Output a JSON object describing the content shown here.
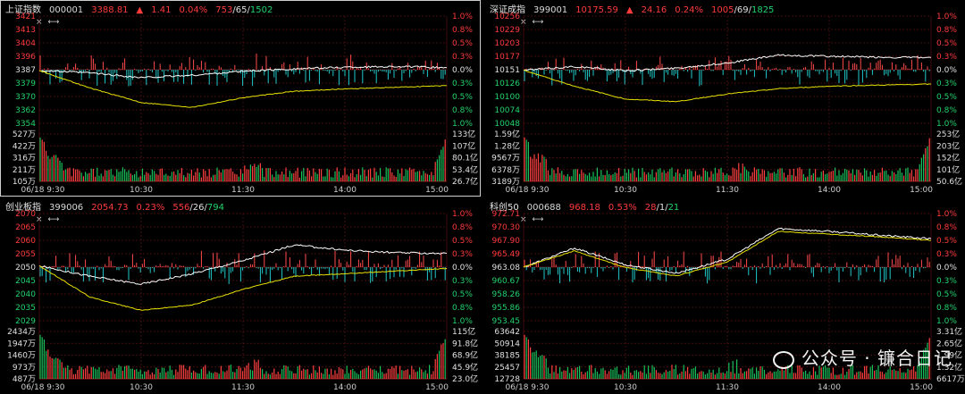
{
  "panels": [
    {
      "name": "上证指数",
      "code": "000001",
      "price": "3388.81",
      "arrow": "▲",
      "change": "1.41",
      "pct": "0.04%",
      "breadth_up": "753",
      "breadth_flat": "65",
      "breadth_down": "1502",
      "price_ticks": [
        "3421",
        "3413",
        "3404",
        "3396",
        "3387",
        "3379",
        "3370",
        "3362",
        "3354"
      ],
      "pct_ticks": [
        "1.0%",
        "0.8%",
        "0.5%",
        "0.3%",
        "0.0%",
        "0.3%",
        "0.5%",
        "0.8%",
        "1.0%"
      ],
      "vol_ticks": [
        "527万",
        "422万",
        "316万",
        "211万",
        "105万"
      ],
      "amt_ticks": [
        "133亿",
        "107亿",
        "80.1亿",
        "53.4亿",
        "26.7亿"
      ],
      "time_ticks": [
        "06/18  9:30",
        "10:30",
        "11:30",
        "14:00",
        "15:00"
      ],
      "chart_data": {
        "type": "line",
        "x": [
          "9:30",
          "10:00",
          "10:30",
          "11:00",
          "11:30",
          "13:30",
          "14:00",
          "14:30",
          "15:00"
        ],
        "series": [
          {
            "values": [
              3387.0,
              3385.5,
              3382.5,
              3384.0,
              3386.5,
              3388.0,
              3389.0,
              3389.5,
              3388.8
            ]
          },
          {
            "values": [
              3387.0,
              3376.0,
              3367.0,
              3364.0,
              3370.0,
              3374.0,
              3375.5,
              3376.5,
              3377.5
            ]
          }
        ]
      }
    },
    {
      "name": "深证成指",
      "code": "399001",
      "price": "10175.59",
      "arrow": "▲",
      "change": "24.16",
      "pct": "0.24%",
      "breadth_up": "1005",
      "breadth_flat": "69",
      "breadth_down": "1825",
      "price_ticks": [
        "10256",
        "10229",
        "10203",
        "10177",
        "10151",
        "10126",
        "10100",
        "10074",
        "10048"
      ],
      "pct_ticks": [
        "1.0%",
        "0.8%",
        "0.5%",
        "0.3%",
        "0.0%",
        "0.3%",
        "0.5%",
        "0.8%",
        "1.0%"
      ],
      "vol_ticks": [
        "1.59亿",
        "1.28亿",
        "9567万",
        "6378万",
        "3189万"
      ],
      "amt_ticks": [
        "253亿",
        "203亿",
        "152亿",
        "101亿",
        "50.6亿"
      ],
      "time_ticks": [
        "06/18  9:30",
        "10:30",
        "11:30",
        "14:00",
        "15:00"
      ],
      "chart_data": {
        "type": "line",
        "x": [
          "9:30",
          "10:00",
          "10:30",
          "11:00",
          "11:30",
          "13:30",
          "14:00",
          "14:30",
          "15:00"
        ],
        "series": [
          {
            "values": [
              10151,
              10158,
              10150,
              10155,
              10165,
              10180,
              10178,
              10176,
              10175.59
            ]
          },
          {
            "values": [
              10151,
              10120,
              10095,
              10090,
              10105,
              10115,
              10120,
              10122,
              10124
            ]
          }
        ]
      }
    },
    {
      "name": "创业板指",
      "code": "399006",
      "price": "2054.73",
      "arrow": "",
      "change": "",
      "pct": "0.23%",
      "breadth_up": "556",
      "breadth_flat": "26",
      "breadth_down": "794",
      "price_ticks": [
        "2070",
        "2065",
        "2060",
        "2055",
        "2050",
        "2045",
        "2040",
        "2035",
        "2029"
      ],
      "pct_ticks": [
        "1.0%",
        "0.8%",
        "0.5%",
        "0.3%",
        "0.0%",
        "0.3%",
        "0.5%",
        "0.8%",
        "1.0%"
      ],
      "vol_ticks": [
        "2434万",
        "1947万",
        "1460万",
        "973万",
        "487万"
      ],
      "amt_ticks": [
        "115亿",
        "91.8亿",
        "68.9亿",
        "45.9亿",
        "23.0亿"
      ],
      "time_ticks": [
        "06/18  9:30",
        "10:30",
        "11:30",
        "14:00",
        "15:00"
      ],
      "chart_data": {
        "type": "line",
        "x": [
          "9:30",
          "10:00",
          "10:30",
          "11:00",
          "11:30",
          "13:30",
          "14:00",
          "14:30",
          "15:00"
        ],
        "series": [
          {
            "values": [
              2050,
              2046,
              2043,
              2047,
              2052,
              2058,
              2056,
              2055,
              2054.73
            ]
          },
          {
            "values": [
              2050,
              2038,
              2033,
              2035,
              2041,
              2046,
              2047,
              2048,
              2049
            ]
          }
        ]
      }
    },
    {
      "name": "科创50",
      "code": "000688",
      "price": "968.18",
      "arrow": "",
      "change": "",
      "pct": "0.53%",
      "breadth_up": "28",
      "breadth_flat": "1",
      "breadth_down": "21",
      "price_ticks": [
        "972.71",
        "970.30",
        "967.90",
        "965.49",
        "963.08",
        "960.67",
        "958.26",
        "955.86",
        "953.45"
      ],
      "pct_ticks": [
        "1.0%",
        "0.8%",
        "0.5%",
        "0.3%",
        "0.0%",
        "0.3%",
        "0.5%",
        "0.8%",
        "1.0%"
      ],
      "vol_ticks": [
        "63642",
        "50914",
        "38185",
        "25457",
        "12728"
      ],
      "amt_ticks": [
        "3.31亿",
        "2.65亿",
        "1.99亿",
        "1.32亿",
        "6617万"
      ],
      "time_ticks": [
        "06/18  9:30",
        "10:30",
        "11:30",
        "14:00",
        "15:00"
      ],
      "chart_data": {
        "type": "line",
        "x": [
          "9:30",
          "10:00",
          "10:30",
          "11:00",
          "11:30",
          "13:30",
          "14:00",
          "14:30",
          "15:00"
        ],
        "series": [
          {
            "values": [
              963.08,
              966.5,
              963.5,
              962.0,
              964.5,
              970.0,
              969.5,
              968.8,
              968.18
            ]
          },
          {
            "values": [
              963.08,
              966.0,
              963.0,
              961.5,
              964.0,
              969.5,
              969.0,
              968.5,
              967.9
            ]
          }
        ]
      }
    }
  ],
  "controls": {
    "close": "×",
    "expand": "⟷"
  },
  "watermark": {
    "text": "公众号 · 镰合日记",
    "icon": "wechat-logo-icon"
  },
  "colors": {
    "up": "#ff3b3b",
    "down": "#22d36b",
    "index_line": "#ffffff",
    "avg_line": "#e8e000",
    "vol_up": "#ff4040",
    "vol_down": "#19c15a",
    "bar_up": "#ff4b4b",
    "bar_down": "#1fc8c8",
    "grid": "#5a1010"
  }
}
